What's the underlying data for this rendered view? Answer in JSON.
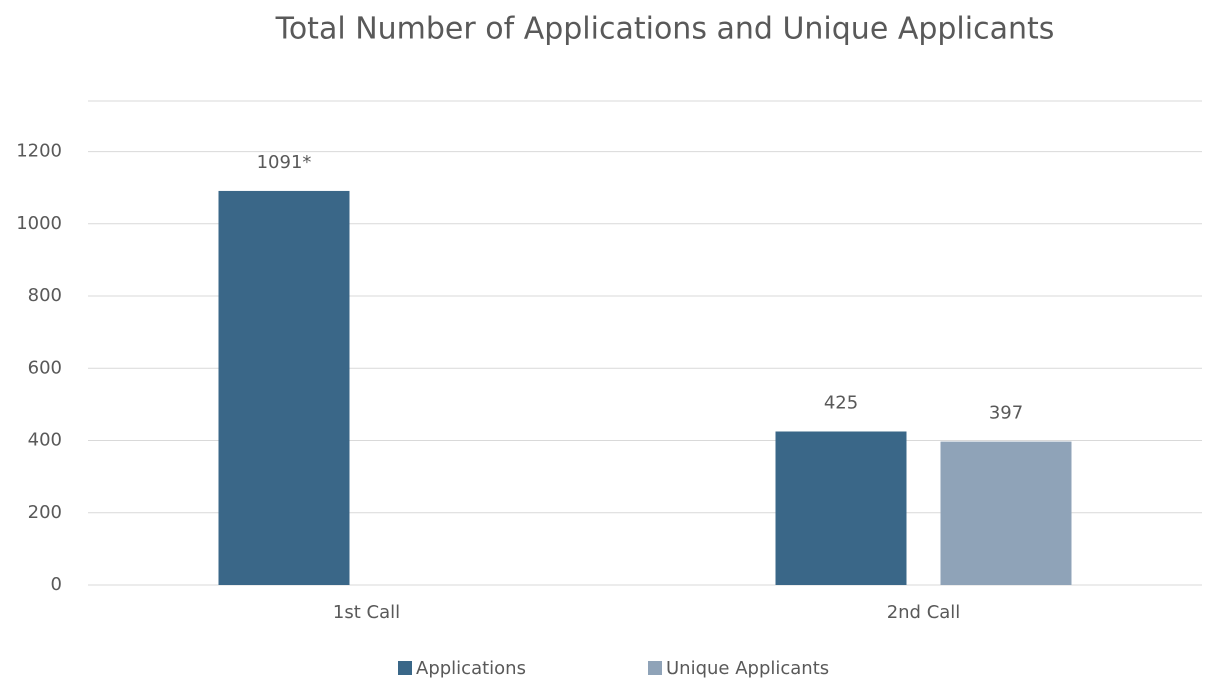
{
  "chart_data": {
    "type": "bar",
    "title": "Total Number of Applications and Unique Applicants",
    "categories": [
      "1st Call",
      "2nd Call"
    ],
    "series": [
      {
        "name": "Applications",
        "color": "#3a6788",
        "values": [
          1091,
          425
        ],
        "value_labels": [
          "1091*",
          "425"
        ]
      },
      {
        "name": "Unique Applicants",
        "color": "#8fa3b8",
        "values": [
          null,
          397
        ],
        "value_labels": [
          null,
          "397"
        ]
      }
    ],
    "ylim": [
      0,
      1340
    ],
    "yticks": [
      0,
      200,
      400,
      600,
      800,
      1000,
      1200
    ],
    "grid": true,
    "legend": "bottom"
  }
}
